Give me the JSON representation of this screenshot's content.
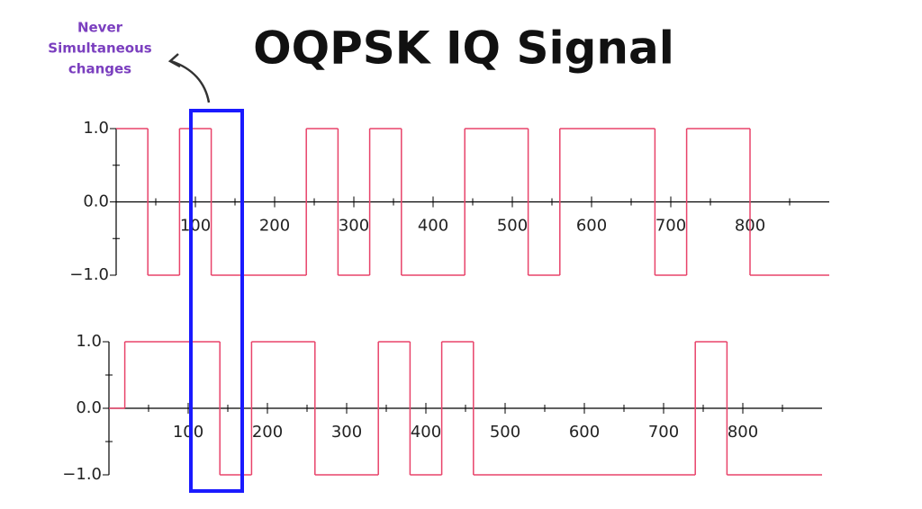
{
  "title": "OQPSK IQ Signal",
  "annotation": [
    "Never",
    "Simultaneous",
    "changes"
  ],
  "chart_data": [
    {
      "type": "step",
      "color": "#e8436a",
      "x": [
        0,
        40,
        80,
        120,
        240,
        280,
        320,
        360,
        440,
        520,
        560,
        680,
        720,
        800
      ],
      "values": [
        1,
        -1,
        1,
        -1,
        1,
        -1,
        1,
        -1,
        1,
        -1,
        1,
        -1,
        1,
        -1
      ],
      "xlim": [
        0,
        900
      ],
      "ylim": [
        -1,
        1
      ],
      "xticks": [
        100,
        200,
        300,
        400,
        500,
        600,
        700,
        800
      ],
      "xminor": [
        50,
        150,
        250,
        350,
        450,
        550,
        650,
        750,
        850
      ],
      "yticks": [
        {
          "value": 1,
          "label": "1.0"
        },
        {
          "value": 0,
          "label": "0.0"
        },
        {
          "value": -1,
          "label": "−1.0"
        }
      ],
      "yminor": [
        0.5,
        -0.5
      ]
    },
    {
      "type": "step",
      "color": "#e8436a",
      "x": [
        0,
        20,
        140,
        180,
        260,
        340,
        380,
        420,
        460,
        740,
        780
      ],
      "values": [
        0,
        1,
        -1,
        1,
        -1,
        1,
        -1,
        1,
        -1,
        1,
        -1
      ],
      "xlim": [
        0,
        900
      ],
      "ylim": [
        -1,
        1
      ],
      "xticks": [
        100,
        200,
        300,
        400,
        500,
        600,
        700,
        800
      ],
      "xminor": [
        50,
        150,
        250,
        350,
        450,
        550,
        650,
        750,
        850
      ],
      "yticks": [
        {
          "value": 1,
          "label": "1.0"
        },
        {
          "value": 0,
          "label": "0.0"
        },
        {
          "value": -1,
          "label": "−1.0"
        }
      ],
      "yminor": [
        0.5,
        -0.5
      ]
    }
  ]
}
